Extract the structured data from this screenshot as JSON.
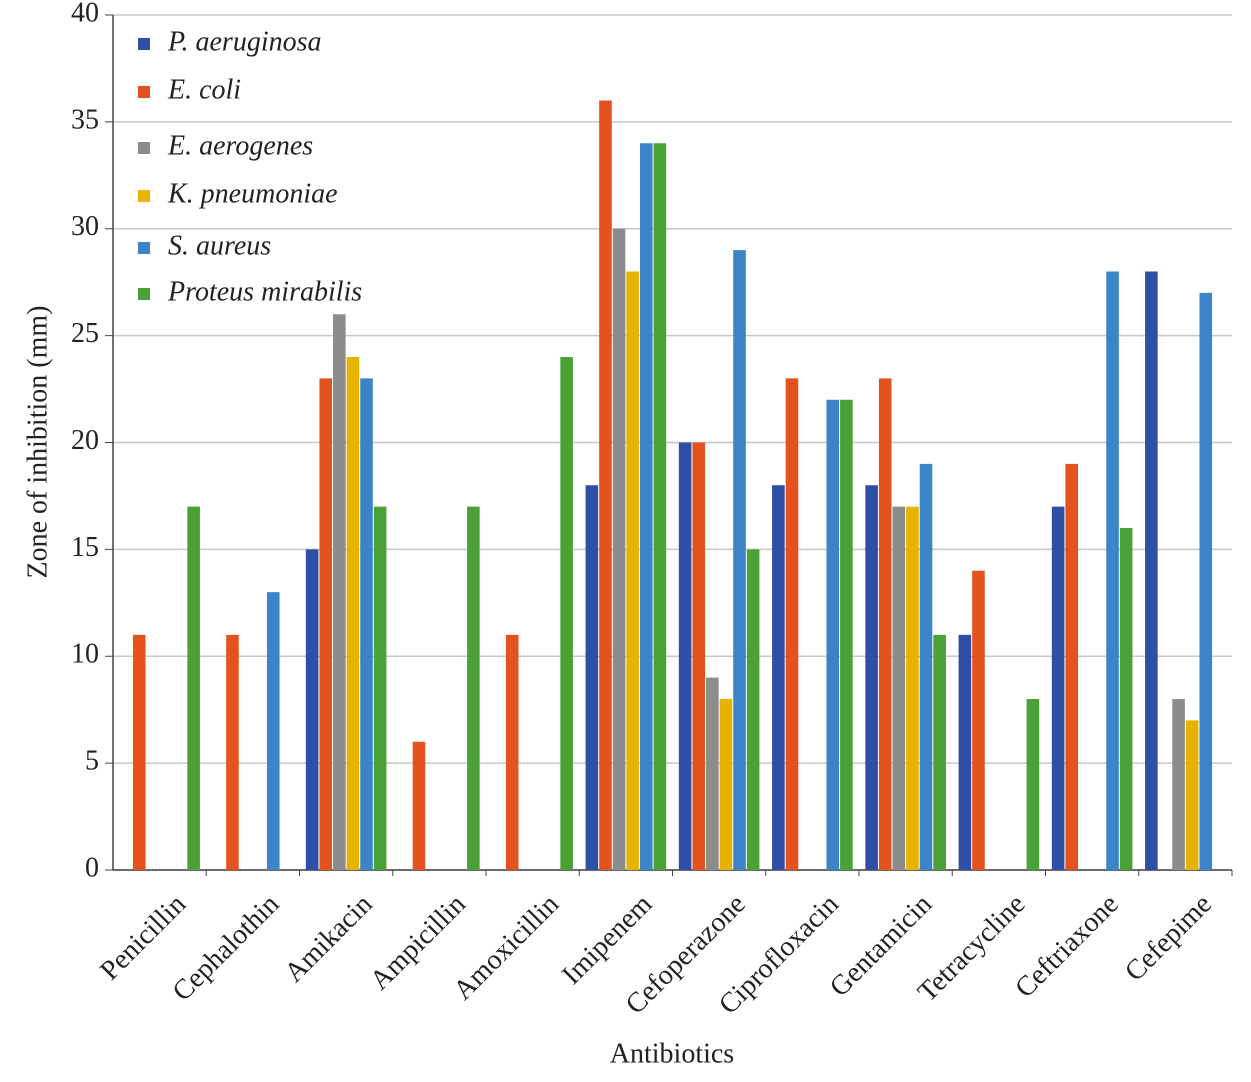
{
  "chart_data": {
    "type": "bar",
    "y_label": "Zone of inhibition (mm)",
    "x_label": "Antibiotics",
    "categories": [
      "Penicillin",
      "Cephalothin",
      "Amikacin",
      "Ampicillin",
      "Amoxicillin",
      "Imipenem",
      "Cefoperazone",
      "Ciprofloxacin",
      "Gentamicin",
      "Tetracycline",
      "Ceftriaxone",
      "Cefepime"
    ],
    "series": [
      {
        "name": "P. aeruginosa",
        "color": "#2f4fa6",
        "values": [
          0,
          0,
          15,
          0,
          0,
          18,
          20,
          18,
          18,
          11,
          17,
          28
        ]
      },
      {
        "name": "E. coli",
        "color": "#e4531e",
        "values": [
          11,
          11,
          23,
          6,
          11,
          36,
          20,
          23,
          23,
          14,
          19,
          0
        ]
      },
      {
        "name": "E. aerogenes",
        "color": "#8c8c8c",
        "values": [
          0,
          0,
          26,
          0,
          0,
          30,
          9,
          0,
          17,
          0,
          0,
          8
        ]
      },
      {
        "name": "K. pneumoniae",
        "color": "#e6b300",
        "values": [
          0,
          0,
          24,
          0,
          0,
          28,
          8,
          0,
          17,
          0,
          0,
          7
        ]
      },
      {
        "name": "S. aureus",
        "color": "#3c84c8",
        "values": [
          0,
          13,
          23,
          0,
          0,
          34,
          29,
          22,
          19,
          0,
          28,
          27
        ]
      },
      {
        "name": "Proteus mirabilis",
        "color": "#4aa135",
        "values": [
          17,
          0,
          17,
          17,
          24,
          34,
          15,
          22,
          11,
          8,
          16,
          0
        ]
      }
    ],
    "ylim": [
      0,
      40
    ],
    "yticks": [
      0,
      5,
      10,
      15,
      20,
      25,
      30,
      35,
      40
    ],
    "grid": true,
    "legend": "top-left"
  }
}
